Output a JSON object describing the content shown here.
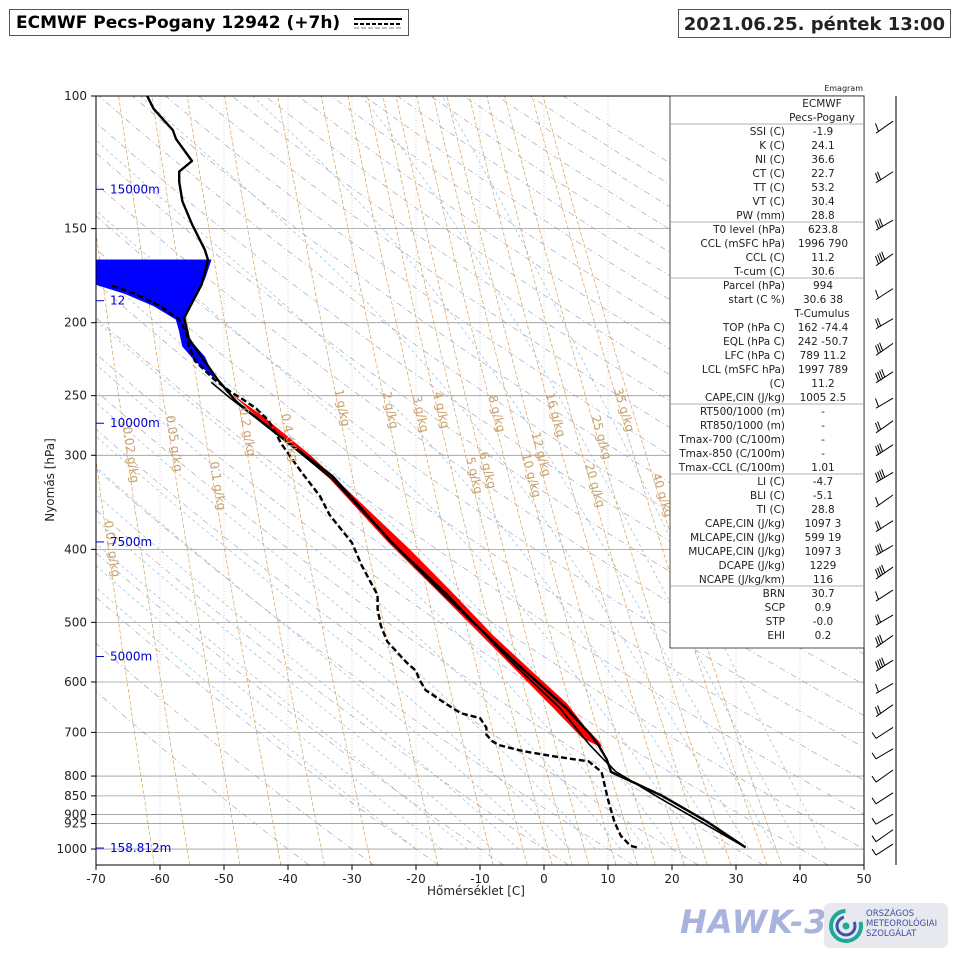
{
  "header": {
    "title": "ECMWF Pecs-Pogany 12942 (+7h)",
    "datetime": "2021.06.25. péntek 13:00"
  },
  "chart_label": "Emagram",
  "colors": {
    "temperature_line": "#000000",
    "dewpoint_line": "#000000",
    "cape_area": "#ff0000",
    "tropopause_area": "#0000ff",
    "mixing_ratio_lines": "#d2a66a",
    "height_labels": "#0000cc",
    "grid": "#b0b0b0"
  },
  "chart_data": {
    "type": "line",
    "title": "",
    "xlabel": "Hőmérséklet [C]",
    "ylabel": "Nyomás [hPa]",
    "xlim": [
      -70,
      50
    ],
    "ylim": [
      1050,
      100
    ],
    "y_scale": "log",
    "x_ticks": [
      "-70",
      "-60",
      "-50",
      "-40",
      "-30",
      "-20",
      "-10",
      "0",
      "10",
      "20",
      "30",
      "40",
      "50"
    ],
    "y_ticks": [
      "100",
      "150",
      "200",
      "250",
      "300",
      "400",
      "500",
      "600",
      "700",
      "800",
      "850",
      "900",
      "925",
      "1000"
    ],
    "height_labels": [
      {
        "p": 133,
        "label": "15000m"
      },
      {
        "p": 187,
        "label": "12"
      },
      {
        "p": 272,
        "label": "10000m"
      },
      {
        "p": 391,
        "label": "7500m"
      },
      {
        "p": 555,
        "label": "5000m"
      },
      {
        "p": 997,
        "label": "158.812m"
      }
    ],
    "mixing_ratio_labels": [
      "0.02 g/kg",
      "0.05 g/kg",
      "0.1 g/kg",
      "0.2 g/kg",
      "0.4 g/kg",
      "0.01 g/kg",
      "1 g/kg",
      "2 g/kg",
      "3 g/kg",
      "4 g/kg",
      "5 g/kg",
      "6 g/kg",
      "8 g/kg",
      "10 g/kg",
      "12 g/kg",
      "16 g/kg",
      "20 g/kg",
      "25 g/kg",
      "35 g/kg",
      "40 g/kg"
    ],
    "series": [
      {
        "name": "temperature",
        "style": "solid",
        "points": [
          [
            31.5,
            995
          ],
          [
            25.5,
            920
          ],
          [
            18.5,
            850
          ],
          [
            10.5,
            790
          ],
          [
            9.8,
            760
          ],
          [
            8.6,
            730
          ],
          [
            7.3,
            705
          ],
          [
            3.5,
            650
          ],
          [
            -5.0,
            560
          ],
          [
            -15.5,
            460
          ],
          [
            -24.0,
            390
          ],
          [
            -33.0,
            320
          ],
          [
            -42.0,
            280
          ],
          [
            -48.0,
            255
          ],
          [
            -51.0,
            238
          ],
          [
            -53.5,
            222
          ],
          [
            -55.5,
            210
          ],
          [
            -56.2,
            197
          ],
          [
            -53.5,
            178
          ],
          [
            -52.5,
            165
          ],
          [
            -53.0,
            160
          ],
          [
            -55.0,
            148
          ],
          [
            -56.5,
            138
          ],
          [
            -57.0,
            130
          ],
          [
            -57.0,
            126
          ],
          [
            -55.0,
            122
          ],
          [
            -57.5,
            114
          ],
          [
            -58.0,
            111
          ],
          [
            -61.0,
            104
          ],
          [
            -62.0,
            100
          ]
        ]
      },
      {
        "name": "dewpoint",
        "style": "dashed",
        "points": [
          [
            14.5,
            995
          ],
          [
            13.5,
            990
          ],
          [
            12.0,
            960
          ],
          [
            11.0,
            920
          ],
          [
            10.0,
            860
          ],
          [
            9.0,
            790
          ],
          [
            7.0,
            765
          ],
          [
            1.0,
            752
          ],
          [
            -3.0,
            742
          ],
          [
            -7.0,
            728
          ],
          [
            -8.0,
            720
          ],
          [
            -9.0,
            705
          ],
          [
            -9.0,
            690
          ],
          [
            -10.0,
            670
          ],
          [
            -13.0,
            660
          ],
          [
            -15.5,
            640
          ],
          [
            -18.5,
            615
          ],
          [
            -19.5,
            595
          ],
          [
            -20.0,
            580
          ],
          [
            -21.5,
            565
          ],
          [
            -24.5,
            530
          ],
          [
            -25.5,
            505
          ],
          [
            -26.0,
            480
          ],
          [
            -26.0,
            460
          ],
          [
            -28.5,
            420
          ],
          [
            -30.0,
            392
          ],
          [
            -33.5,
            360
          ],
          [
            -35.0,
            340
          ],
          [
            -38.0,
            315
          ],
          [
            -41.0,
            290
          ],
          [
            -43.0,
            270
          ],
          [
            -45.0,
            260
          ],
          [
            -47.0,
            253
          ],
          [
            -49.0,
            247
          ],
          [
            -51.5,
            238
          ],
          [
            -54.5,
            225
          ],
          [
            -55.5,
            215
          ],
          [
            -56.0,
            205
          ],
          [
            -57.0,
            198
          ],
          [
            -60.0,
            190
          ],
          [
            -64.0,
            183
          ],
          [
            -68.0,
            178
          ]
        ]
      },
      {
        "name": "parcel",
        "style": "solid",
        "points": [
          [
            31.5,
            995
          ],
          [
            25.0,
            925
          ],
          [
            18.0,
            855
          ],
          [
            11.2,
            789
          ],
          [
            9.3,
            760
          ],
          [
            7.0,
            725
          ],
          [
            2.5,
            650
          ],
          [
            -5.5,
            560
          ],
          [
            -15.0,
            460
          ],
          [
            -24.0,
            390
          ],
          [
            -33.0,
            323
          ],
          [
            -42.0,
            280
          ],
          [
            -49.0,
            252
          ],
          [
            -52.0,
            240
          ]
        ]
      },
      {
        "name": "cape",
        "style": "fill",
        "points": [
          [
            9.0,
            730
          ],
          [
            8.6,
            720
          ],
          [
            6.5,
            690
          ],
          [
            3.5,
            640
          ],
          [
            -2.0,
            580
          ],
          [
            -8.0,
            520
          ],
          [
            -14.5,
            455
          ],
          [
            -21.0,
            400
          ],
          [
            -28.5,
            348
          ],
          [
            -36.5,
            300
          ],
          [
            -44.0,
            266
          ],
          [
            -48.5,
            250
          ],
          [
            -43.0,
            275
          ],
          [
            -33.5,
            322
          ],
          [
            -24.5,
            390
          ],
          [
            -16.0,
            460
          ],
          [
            -6.0,
            560
          ],
          [
            1.5,
            650
          ],
          [
            6.0,
            712
          ],
          [
            8.6,
            730
          ]
        ]
      },
      {
        "name": "tropopause",
        "style": "fill",
        "points": [
          [
            -52.0,
            165
          ],
          [
            -70.0,
            165
          ],
          [
            -70.0,
            178
          ],
          [
            -65.5,
            183
          ],
          [
            -61.0,
            190
          ],
          [
            -57.5,
            198
          ],
          [
            -57.0,
            205
          ],
          [
            -56.5,
            215
          ],
          [
            -54.5,
            225
          ],
          [
            -52.5,
            233
          ],
          [
            -51.5,
            237
          ],
          [
            -53.0,
            222
          ],
          [
            -55.5,
            210
          ],
          [
            -56.2,
            197
          ],
          [
            -54.5,
            185
          ],
          [
            -53.0,
            175
          ]
        ]
      }
    ]
  },
  "indices": [
    {
      "label": "",
      "value": "ECMWF",
      "sep": false,
      "center": true
    },
    {
      "label": "",
      "value": "Pecs-Pogany",
      "sep": true,
      "center": true
    },
    {
      "label": "SSI (C)",
      "value": "-1.9",
      "sep": false
    },
    {
      "label": "K (C)",
      "value": "24.1",
      "sep": false
    },
    {
      "label": "NI (C)",
      "value": "36.6",
      "sep": false
    },
    {
      "label": "CT (C)",
      "value": "22.7",
      "sep": false
    },
    {
      "label": "TT (C)",
      "value": "53.2",
      "sep": false
    },
    {
      "label": "VT (C)",
      "value": "30.4",
      "sep": false
    },
    {
      "label": "PW (mm)",
      "value": "28.8",
      "sep": true
    },
    {
      "label": "T0 level (hPa)",
      "value": "623.8",
      "sep": false
    },
    {
      "label": "CCL (mSFC  hPa)",
      "value": "1996  790",
      "sep": false
    },
    {
      "label": "CCL (C)",
      "value": "11.2",
      "sep": false
    },
    {
      "label": "T-cum (C)",
      "value": "30.6",
      "sep": true
    },
    {
      "label": "Parcel  (hPa)",
      "value": "994",
      "sep": false
    },
    {
      "label": "start (C  %)",
      "value": "30.6  38",
      "sep": false
    },
    {
      "label": "",
      "value": "T-Cumulus",
      "sep": false,
      "center": true
    },
    {
      "label": "TOP (hPa  C)",
      "value": "162  -74.4",
      "sep": false
    },
    {
      "label": "EQL (hPa  C)",
      "value": "242  -50.7",
      "sep": false
    },
    {
      "label": "LFC (hPa  C)",
      "value": "789  11.2",
      "sep": false
    },
    {
      "label": "LCL (mSFC  hPa)",
      "value": "1997  789",
      "sep": false
    },
    {
      "label": "(C)",
      "value": "11.2",
      "sep": false
    },
    {
      "label": "CAPE,CIN (J/kg)",
      "value": "1005  2.5",
      "sep": true
    },
    {
      "label": "RT500/1000 (m)",
      "value": "-",
      "sep": false
    },
    {
      "label": "RT850/1000 (m)",
      "value": "-",
      "sep": false
    },
    {
      "label": "Tmax-700 (C/100m)",
      "value": "-",
      "sep": false
    },
    {
      "label": "Tmax-850 (C/100m)",
      "value": "-",
      "sep": false
    },
    {
      "label": "Tmax-CCL (C/100m)",
      "value": "1.01",
      "sep": true
    },
    {
      "label": "LI (C)",
      "value": "-4.7",
      "sep": false
    },
    {
      "label": "BLI (C)",
      "value": "-5.1",
      "sep": false
    },
    {
      "label": "TI (C)",
      "value": "28.8",
      "sep": false
    },
    {
      "label": "CAPE,CIN (J/kg)",
      "value": "1097     3",
      "sep": false
    },
    {
      "label": "MLCAPE,CIN (J/kg)",
      "value": "599    19",
      "sep": false
    },
    {
      "label": "MUCAPE,CIN (J/kg)",
      "value": "1097     3",
      "sep": false
    },
    {
      "label": "DCAPE (J/kg)",
      "value": "1229",
      "sep": false
    },
    {
      "label": "NCAPE (J/kg/km)",
      "value": "116",
      "sep": true
    },
    {
      "label": "BRN",
      "value": "30.7",
      "sep": false
    },
    {
      "label": "SCP",
      "value": "0.9",
      "sep": false
    },
    {
      "label": "STP",
      "value": "-0.0",
      "sep": false
    },
    {
      "label": "EHI",
      "value": "0.2",
      "sep": false
    }
  ],
  "footer": {
    "brand": "HAWK-3",
    "org_line1": "ORSZÁGOS",
    "org_line2": "METEOROLÓGIAI",
    "org_line3": "SZOLGÁLAT"
  }
}
